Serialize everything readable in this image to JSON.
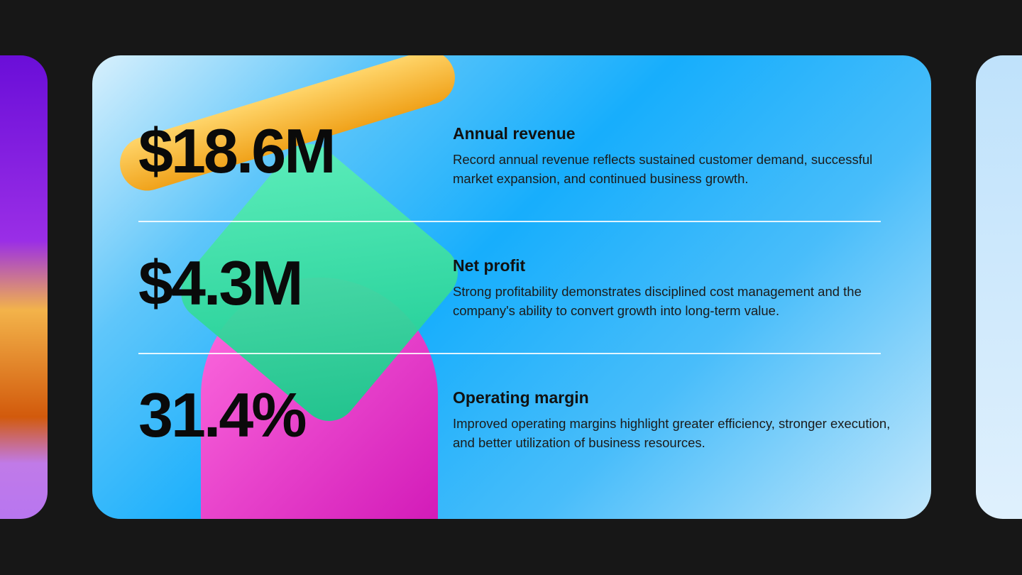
{
  "metrics": [
    {
      "value": "$18.6M",
      "title": "Annual revenue",
      "description": "Record annual revenue reflects sustained customer demand, successful market expansion, and continued business growth."
    },
    {
      "value": "$4.3M",
      "title": "Net profit",
      "description": "Strong profitability demonstrates disciplined cost management and the company's ability to convert growth into long-term value."
    },
    {
      "value": "31.4%",
      "title": "Operating margin",
      "description": "Improved operating margins highlight greater efficiency, stronger execution, and better utilization of business resources."
    }
  ]
}
